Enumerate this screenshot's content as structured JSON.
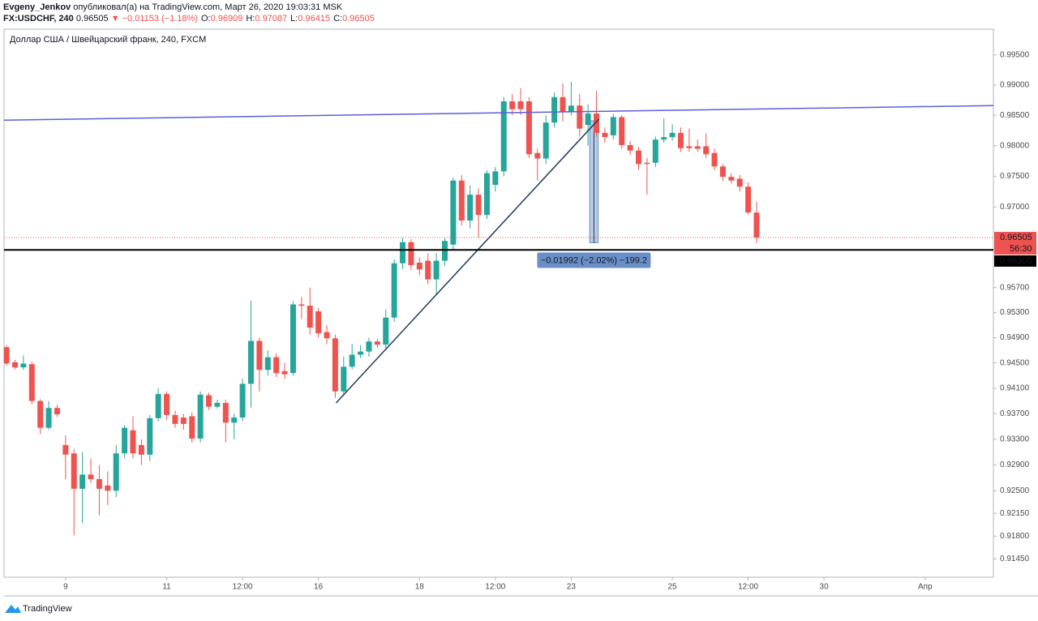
{
  "header": {
    "author": "Evgeny_Jenkov",
    "published": "опубликовал(а) на TradingView.com, Март 26, 2020 19:03:31 MSK",
    "symbol": "FX:USDCHF, 240",
    "price": "0.96505",
    "change": "▼ −0.01153 (−1.18%)",
    "quote": [
      {
        "key": "O:",
        "value": "0.96909"
      },
      {
        "key": "H:",
        "value": "0.97087"
      },
      {
        "key": "L:",
        "value": "0.96415"
      },
      {
        "key": "C:",
        "value": "0.96505"
      }
    ]
  },
  "chart_data": {
    "type": "candlestick",
    "title": "Доллар США / Швейцарский франк, 240, FXCM",
    "log": true,
    "up_color": "#26a69a",
    "down_color": "#ef5350",
    "xlim": [
      -0.3,
      117.1
    ],
    "ylim": [
      0.9117,
      0.9993
    ],
    "xticks": [
      {
        "value": 7,
        "label": "9"
      },
      {
        "value": 19,
        "label": "11"
      },
      {
        "value": 28,
        "label": "12:00"
      },
      {
        "value": 37,
        "label": "16"
      },
      {
        "value": 49,
        "label": "18"
      },
      {
        "value": 58,
        "label": "12:00"
      },
      {
        "value": 67,
        "label": "23"
      },
      {
        "value": 79,
        "label": "25"
      },
      {
        "value": 88,
        "label": "12:00"
      },
      {
        "value": 97,
        "label": "30"
      },
      {
        "value": 109,
        "label": "Апр"
      }
    ],
    "yticks": [
      {
        "value": 0.995,
        "label": "0.99500"
      },
      {
        "value": 0.99,
        "label": "0.99000"
      },
      {
        "value": 0.985,
        "label": "0.98500"
      },
      {
        "value": 0.98,
        "label": "0.98000"
      },
      {
        "value": 0.975,
        "label": "0.97500"
      },
      {
        "value": 0.97,
        "label": "0.97000"
      },
      {
        "value": 0.957,
        "label": "0.95700"
      },
      {
        "value": 0.953,
        "label": "0.95300"
      },
      {
        "value": 0.949,
        "label": "0.94900"
      },
      {
        "value": 0.945,
        "label": "0.94500"
      },
      {
        "value": 0.941,
        "label": "0.94100"
      },
      {
        "value": 0.937,
        "label": "0.93700"
      },
      {
        "value": 0.933,
        "label": "0.93300"
      },
      {
        "value": 0.929,
        "label": "0.92900"
      },
      {
        "value": 0.925,
        "label": "0.92500"
      },
      {
        "value": 0.9215,
        "label": "0.92150"
      },
      {
        "value": 0.918,
        "label": "0.91800"
      },
      {
        "value": 0.9145,
        "label": "0.91450"
      }
    ],
    "open": [
      0.9475,
      0.9451,
      0.9443,
      0.9448,
      0.939,
      0.9348,
      0.9379,
      0.9321,
      0.9308,
      0.9253,
      0.9275,
      0.9268,
      0.9258,
      0.925,
      0.9308,
      0.9344,
      0.9321,
      0.9306,
      0.9363,
      0.9401,
      0.9368,
      0.9364,
      0.9366,
      0.9331,
      0.9399,
      0.9381,
      0.9387,
      0.9356,
      0.9364,
      0.9417,
      0.9485,
      0.9439,
      0.9459,
      0.9437,
      0.9434,
      0.9543,
      0.9541,
      0.9532,
      0.9499,
      0.9489,
      0.9405,
      0.9444,
      0.9463,
      0.9468,
      0.9484,
      0.9479,
      0.9522,
      0.9609,
      0.9643,
      0.961,
      0.9613,
      0.9583,
      0.9613,
      0.9639,
      0.9743,
      0.9678,
      0.972,
      0.9687,
      0.9736,
      0.9758,
      0.9873,
      0.9873,
      0.9873,
      0.9788,
      0.9779,
      0.9838,
      0.988,
      0.9856,
      0.9866,
      0.9834,
      0.9853,
      0.9821,
      0.9817,
      0.9847,
      0.9801,
      0.9792,
      0.9772,
      0.9772,
      0.981,
      0.9814,
      0.9821,
      0.9799,
      0.9799,
      0.9799,
      0.9788,
      0.9766,
      0.9749,
      0.9746,
      0.9733,
      0.96909
    ],
    "high": [
      0.9478,
      0.9455,
      0.9462,
      0.9452,
      0.9393,
      0.939,
      0.9384,
      0.9336,
      0.9315,
      0.931,
      0.93,
      0.929,
      0.928,
      0.9321,
      0.9352,
      0.9366,
      0.933,
      0.9368,
      0.941,
      0.9405,
      0.9375,
      0.937,
      0.9372,
      0.9405,
      0.9403,
      0.9392,
      0.9392,
      0.937,
      0.9425,
      0.9549,
      0.949,
      0.947,
      0.9465,
      0.945,
      0.9548,
      0.9555,
      0.957,
      0.9538,
      0.951,
      0.9495,
      0.946,
      0.948,
      0.9478,
      0.949,
      0.9488,
      0.9535,
      0.9615,
      0.965,
      0.9648,
      0.9618,
      0.9625,
      0.9625,
      0.965,
      0.9748,
      0.9752,
      0.9735,
      0.973,
      0.976,
      0.9765,
      0.988,
      0.9885,
      0.9895,
      0.988,
      0.9795,
      0.985,
      0.9888,
      0.9903,
      0.9905,
      0.9885,
      0.9868,
      0.989,
      0.983,
      0.9852,
      0.985,
      0.9808,
      0.9798,
      0.978,
      0.9815,
      0.9845,
      0.9835,
      0.983,
      0.9828,
      0.981,
      0.982,
      0.9795,
      0.977,
      0.9755,
      0.9752,
      0.974,
      0.97087
    ],
    "low": [
      0.9446,
      0.944,
      0.9439,
      0.9385,
      0.9338,
      0.9345,
      0.9365,
      0.9268,
      0.9181,
      0.92,
      0.9262,
      0.9212,
      0.9228,
      0.924,
      0.93,
      0.93,
      0.929,
      0.9296,
      0.9358,
      0.936,
      0.9348,
      0.9345,
      0.9325,
      0.9325,
      0.9376,
      0.9378,
      0.9325,
      0.933,
      0.9358,
      0.938,
      0.9405,
      0.943,
      0.9428,
      0.9425,
      0.943,
      0.952,
      0.9495,
      0.949,
      0.948,
      0.9395,
      0.9398,
      0.944,
      0.9458,
      0.946,
      0.9474,
      0.9472,
      0.9515,
      0.96,
      0.9598,
      0.959,
      0.9575,
      0.956,
      0.9605,
      0.963,
      0.967,
      0.9665,
      0.965,
      0.968,
      0.9725,
      0.975,
      0.985,
      0.985,
      0.978,
      0.9743,
      0.977,
      0.983,
      0.984,
      0.985,
      0.9815,
      0.98,
      0.9815,
      0.9805,
      0.981,
      0.9795,
      0.9785,
      0.976,
      0.972,
      0.9765,
      0.9805,
      0.9808,
      0.979,
      0.979,
      0.979,
      0.978,
      0.976,
      0.9742,
      0.9738,
      0.9725,
      0.9688,
      0.96415
    ],
    "close": [
      0.9449,
      0.9443,
      0.9449,
      0.939,
      0.9348,
      0.9379,
      0.9369,
      0.9306,
      0.9253,
      0.9275,
      0.9268,
      0.9253,
      0.925,
      0.9308,
      0.9348,
      0.9308,
      0.9306,
      0.9363,
      0.9401,
      0.9368,
      0.9354,
      0.9354,
      0.9331,
      0.94,
      0.9381,
      0.9387,
      0.9356,
      0.9364,
      0.9417,
      0.9485,
      0.9439,
      0.9459,
      0.9434,
      0.9432,
      0.9543,
      0.9541,
      0.9506,
      0.9497,
      0.9489,
      0.9405,
      0.9444,
      0.9463,
      0.9468,
      0.9484,
      0.9479,
      0.9522,
      0.9609,
      0.9643,
      0.9606,
      0.9599,
      0.9583,
      0.9613,
      0.9645,
      0.9743,
      0.9678,
      0.972,
      0.9687,
      0.9755,
      0.9758,
      0.9873,
      0.986,
      0.986,
      0.9786,
      0.9779,
      0.9838,
      0.988,
      0.9856,
      0.9866,
      0.9828,
      0.9853,
      0.9821,
      0.9814,
      0.9847,
      0.9801,
      0.9792,
      0.977,
      0.977,
      0.981,
      0.9814,
      0.9821,
      0.9796,
      0.9796,
      0.9795,
      0.9786,
      0.9766,
      0.9749,
      0.9743,
      0.9733,
      0.9691,
      0.96505
    ],
    "trend_lines": [
      {
        "x": [
          -0.3,
          117.1
        ],
        "y": [
          0.9842,
          0.9866
        ],
        "color": "#5b5fd8"
      },
      {
        "x": [
          39.1,
          70.3
        ],
        "y": [
          0.9387,
          0.9844
        ],
        "color": "#1f3a5f"
      }
    ],
    "horizontal_line": {
      "value": 0.96305,
      "label": "0.96305",
      "color": "#000000"
    },
    "last_price": {
      "value": 0.96505,
      "label": "0.96505",
      "countdown": "56:30",
      "color": "#ef5350"
    },
    "measure": {
      "x": [
        69.2,
        70.2
      ],
      "from": 0.9841,
      "to": 0.9642,
      "label": "−0.01992 (−2.02%) −199.2",
      "color": "#6a8fc8"
    }
  },
  "footer": {
    "brand": "TradingView"
  }
}
